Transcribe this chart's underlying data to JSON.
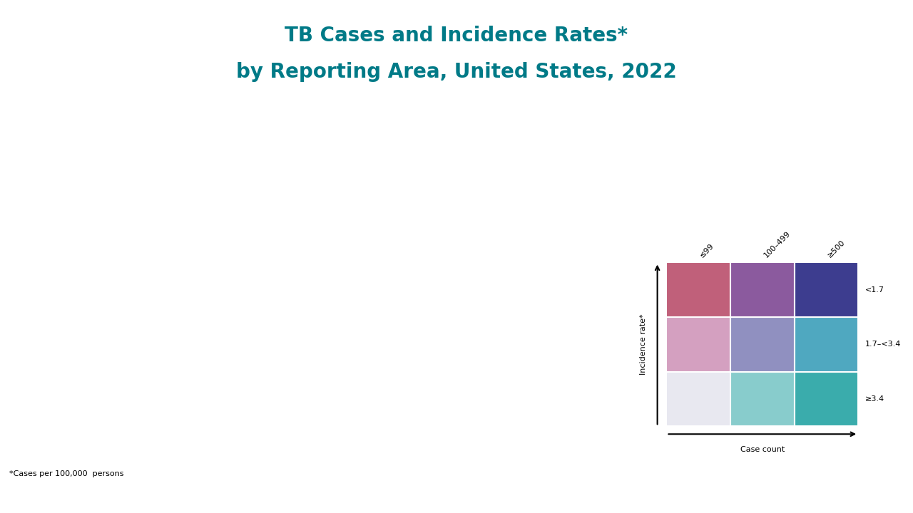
{
  "title_line1": "TB Cases and Incidence Rates*",
  "title_line2": "by Reporting Area, United States, 2022",
  "title_color": "#007a87",
  "footnote": "*Cases per 100,000  persons",
  "background_color": "#ffffff",
  "bottom_bar_color": "#007a87",
  "legend": {
    "col_labels": [
      "≤99",
      "100–499",
      "≥500"
    ],
    "row_labels": [
      "≥3.4",
      "1.7–<3.4",
      "<1.7"
    ],
    "colors": [
      [
        "#c0607a",
        "#8b5a9e",
        "#3d3d8f"
      ],
      [
        "#d4a0c0",
        "#9090c0",
        "#4fa8c0"
      ],
      [
        "#e8e8f0",
        "#88cccc",
        "#3aacac"
      ]
    ],
    "x_axis_label": "Case count",
    "y_axis_label": "Incidence rate*"
  },
  "state_colors": {
    "AL": "#9090c0",
    "AK": "#c0607a",
    "AZ": "#9090c0",
    "AR": "#d4a0c0",
    "CA": "#3d3d8f",
    "CO": "#e8e8f0",
    "CT": "#d4a0c0",
    "DE": "#d4a0c0",
    "FL": "#3aacac",
    "GA": "#9090c0",
    "HI": "#c0607a",
    "ID": "#e8e8f0",
    "IL": "#9090c0",
    "IN": "#e8e8f0",
    "IA": "#e8e8f0",
    "KS": "#d4a0c0",
    "KY": "#e8e8f0",
    "LA": "#d4a0c0",
    "ME": "#e8e8f0",
    "MD": "#4fa8c0",
    "MA": "#d4a0c0",
    "MI": "#4fa8c0",
    "MN": "#9090c0",
    "MS": "#9090c0",
    "MO": "#e8e8f0",
    "MT": "#e8e8f0",
    "NE": "#e8e8f0",
    "NV": "#9090c0",
    "NH": "#e8e8f0",
    "NJ": "#8b5a9e",
    "NM": "#d4a0c0",
    "NY": "#3d3d8f",
    "NC": "#4fa8c0",
    "ND": "#e8e8f0",
    "OH": "#e8e8f0",
    "OK": "#d4a0c0",
    "OR": "#9090c0",
    "PA": "#9090c0",
    "RI": "#d4a0c0",
    "SC": "#9090c0",
    "SD": "#e8e8f0",
    "TN": "#3aacac",
    "TX": "#3d3d8f",
    "UT": "#e8e8f0",
    "VT": "#e8e8f0",
    "VA": "#9090c0",
    "WA": "#c0607a",
    "WV": "#e8e8f0",
    "WI": "#e8e8f0",
    "WY": "#e8e8f0"
  }
}
